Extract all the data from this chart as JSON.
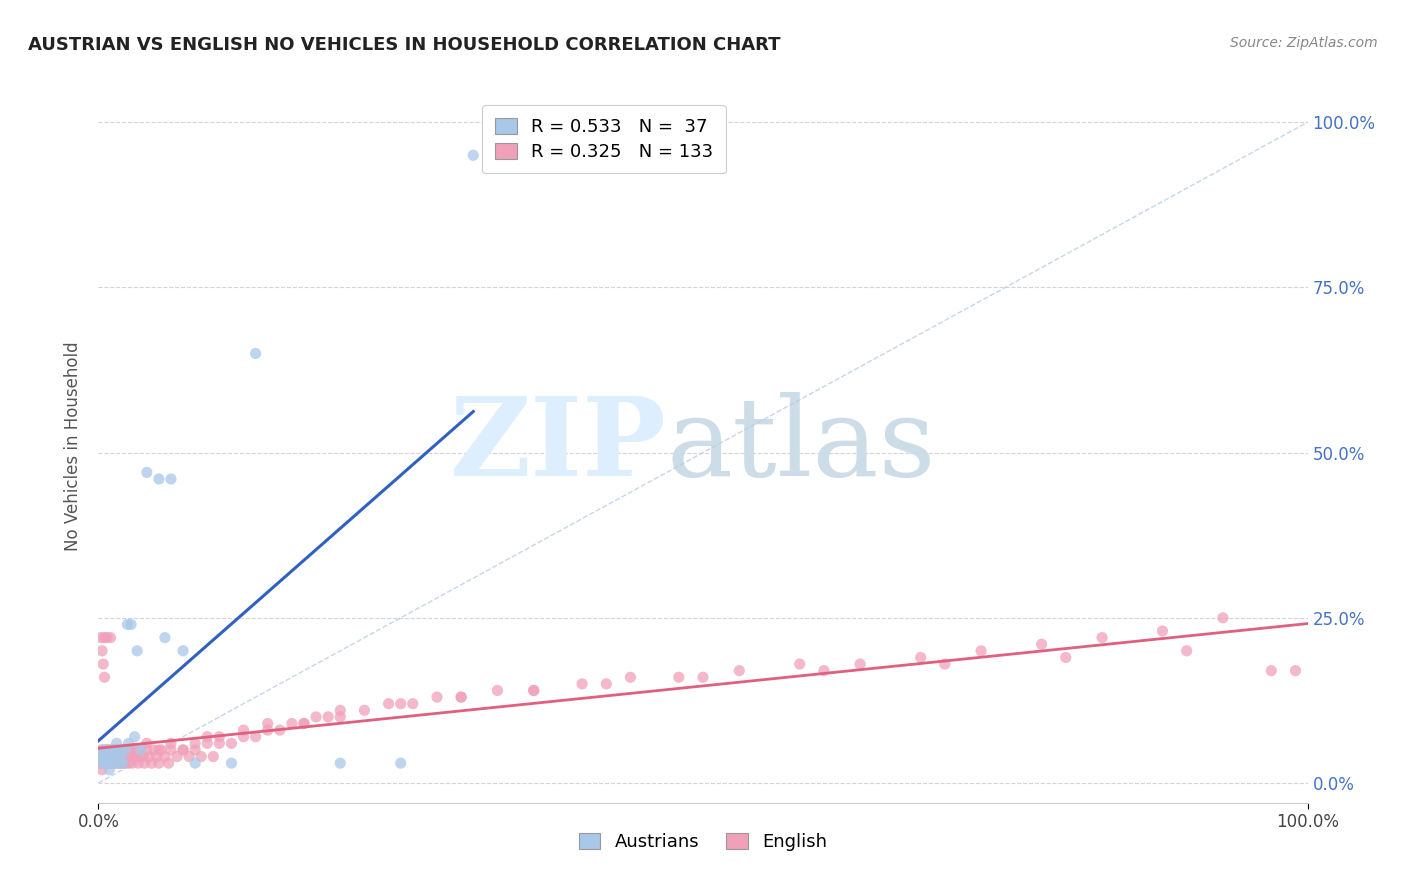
{
  "title": "AUSTRIAN VS ENGLISH NO VEHICLES IN HOUSEHOLD CORRELATION CHART",
  "source": "Source: ZipAtlas.com",
  "ylabel": "No Vehicles in Household",
  "xlim": [
    0,
    1
  ],
  "ylim": [
    -0.03,
    1.05
  ],
  "background_color": "#ffffff",
  "grid_color": "#d0d0d0",
  "blue_color": "#a8c8e8",
  "pink_color": "#f0a0b8",
  "blue_line_color": "#3060c0",
  "pink_line_color": "#e06080",
  "diag_color": "#b8cce4",
  "legend_R_blue": "R = 0.533",
  "legend_N_blue": "N =  37",
  "legend_R_pink": "R = 0.325",
  "legend_N_pink": "N = 133",
  "legend_label_blue": "Austrians",
  "legend_label_pink": "English",
  "right_tick_color": "#4472c4",
  "austrians_x": [
    0.002,
    0.003,
    0.004,
    0.005,
    0.006,
    0.007,
    0.008,
    0.009,
    0.01,
    0.011,
    0.012,
    0.013,
    0.014,
    0.015,
    0.016,
    0.017,
    0.018,
    0.019,
    0.02,
    0.022,
    0.024,
    0.025,
    0.027,
    0.03,
    0.032,
    0.035,
    0.04,
    0.05,
    0.055,
    0.06,
    0.07,
    0.08,
    0.11,
    0.13,
    0.2,
    0.25,
    0.31
  ],
  "austrians_y": [
    0.04,
    0.03,
    0.05,
    0.04,
    0.03,
    0.05,
    0.04,
    0.02,
    0.03,
    0.05,
    0.04,
    0.03,
    0.05,
    0.06,
    0.04,
    0.03,
    0.05,
    0.04,
    0.03,
    0.05,
    0.24,
    0.06,
    0.24,
    0.07,
    0.2,
    0.05,
    0.47,
    0.46,
    0.22,
    0.46,
    0.2,
    0.03,
    0.03,
    0.65,
    0.03,
    0.03,
    0.95
  ],
  "english_x": [
    0.001,
    0.002,
    0.002,
    0.003,
    0.003,
    0.004,
    0.004,
    0.005,
    0.005,
    0.006,
    0.006,
    0.007,
    0.007,
    0.008,
    0.008,
    0.009,
    0.009,
    0.01,
    0.01,
    0.011,
    0.011,
    0.012,
    0.012,
    0.013,
    0.013,
    0.014,
    0.015,
    0.015,
    0.016,
    0.017,
    0.018,
    0.019,
    0.02,
    0.021,
    0.022,
    0.023,
    0.024,
    0.025,
    0.026,
    0.027,
    0.028,
    0.029,
    0.03,
    0.032,
    0.033,
    0.035,
    0.037,
    0.038,
    0.04,
    0.042,
    0.044,
    0.046,
    0.048,
    0.05,
    0.052,
    0.055,
    0.058,
    0.06,
    0.065,
    0.07,
    0.075,
    0.08,
    0.085,
    0.09,
    0.095,
    0.1,
    0.11,
    0.12,
    0.13,
    0.14,
    0.15,
    0.16,
    0.17,
    0.18,
    0.19,
    0.2,
    0.22,
    0.24,
    0.26,
    0.28,
    0.3,
    0.33,
    0.36,
    0.4,
    0.44,
    0.48,
    0.53,
    0.58,
    0.63,
    0.68,
    0.73,
    0.78,
    0.83,
    0.88,
    0.93,
    0.97,
    0.002,
    0.003,
    0.004,
    0.005,
    0.006,
    0.007,
    0.008,
    0.009,
    0.01,
    0.012,
    0.015,
    0.018,
    0.021,
    0.025,
    0.03,
    0.035,
    0.04,
    0.05,
    0.06,
    0.07,
    0.08,
    0.09,
    0.1,
    0.12,
    0.14,
    0.17,
    0.2,
    0.25,
    0.3,
    0.36,
    0.42,
    0.5,
    0.6,
    0.7,
    0.8,
    0.9,
    0.99
  ],
  "english_y": [
    0.03,
    0.05,
    0.22,
    0.02,
    0.2,
    0.04,
    0.18,
    0.03,
    0.16,
    0.05,
    0.04,
    0.03,
    0.22,
    0.04,
    0.03,
    0.05,
    0.04,
    0.03,
    0.22,
    0.04,
    0.03,
    0.05,
    0.04,
    0.03,
    0.05,
    0.04,
    0.03,
    0.05,
    0.04,
    0.03,
    0.05,
    0.04,
    0.03,
    0.04,
    0.03,
    0.05,
    0.04,
    0.03,
    0.05,
    0.04,
    0.03,
    0.04,
    0.05,
    0.04,
    0.03,
    0.05,
    0.04,
    0.03,
    0.05,
    0.04,
    0.03,
    0.05,
    0.04,
    0.03,
    0.05,
    0.04,
    0.03,
    0.05,
    0.04,
    0.05,
    0.04,
    0.05,
    0.04,
    0.06,
    0.04,
    0.06,
    0.06,
    0.07,
    0.07,
    0.08,
    0.08,
    0.09,
    0.09,
    0.1,
    0.1,
    0.11,
    0.11,
    0.12,
    0.12,
    0.13,
    0.13,
    0.14,
    0.14,
    0.15,
    0.16,
    0.16,
    0.17,
    0.18,
    0.18,
    0.19,
    0.2,
    0.21,
    0.22,
    0.23,
    0.25,
    0.17,
    0.04,
    0.03,
    0.05,
    0.22,
    0.04,
    0.03,
    0.05,
    0.04,
    0.03,
    0.05,
    0.04,
    0.03,
    0.05,
    0.04,
    0.05,
    0.04,
    0.06,
    0.05,
    0.06,
    0.05,
    0.06,
    0.07,
    0.07,
    0.08,
    0.09,
    0.09,
    0.1,
    0.12,
    0.13,
    0.14,
    0.15,
    0.16,
    0.17,
    0.18,
    0.19,
    0.2,
    0.17
  ]
}
